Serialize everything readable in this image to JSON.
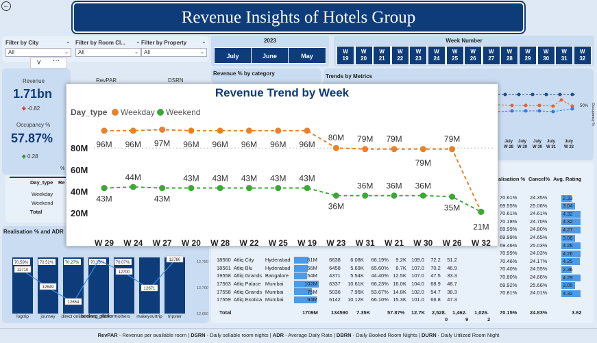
{
  "header": {
    "title": "Revenue Insights of Hotels Group"
  },
  "filters": [
    {
      "label": "Filter by City",
      "value": "All"
    },
    {
      "label": "Filter by Room Cl...",
      "value": "All"
    },
    {
      "label": "Filter by Property",
      "value": "All"
    }
  ],
  "months": {
    "year": "2023",
    "items": [
      "July",
      "June",
      "May"
    ]
  },
  "weeks": {
    "title": "Week Number",
    "prefix": "W",
    "items": [
      "19",
      "20",
      "21",
      "22",
      "23",
      "24",
      "25",
      "26",
      "27",
      "28",
      "29",
      "30",
      "31",
      "32"
    ]
  },
  "kpis": {
    "revenue_label": "Revenue",
    "revenue_value": "1.71bn",
    "revenue_delta": "-0.82",
    "occupancy_label": "Occupancy %",
    "occupancy_value": "57.87%",
    "occupancy_delta": "0.28",
    "revpar_label": "RevPAR",
    "dsrn_label": "DSRN"
  },
  "day_type_table": {
    "header_day": "Day_type",
    "header_rev": "Re",
    "rows": [
      "Weekday",
      "Weekend",
      "Total"
    ],
    "pct_mark": "%"
  },
  "sections": {
    "rev_by_category": "Revenue % by category",
    "trends_by_metrics": "Trends by Metrics",
    "realisation_adr": "Realisation % and ADR"
  },
  "trend_panel": {
    "x_labels": [
      "July W 28",
      "July W 29",
      "July W 30",
      "July W 31",
      "July W 32"
    ],
    "right_axis": "Occupancy %",
    "pct_tick": "50%"
  },
  "platform_chart": {
    "xlabel": "booking_platform",
    "categories": [
      "logtrip",
      "journey",
      "direct online",
      "direct offline",
      "others",
      "makeyourtrip",
      "tripster"
    ],
    "realisation": [
      "70.59%",
      "70.52%",
      "70.27%",
      "70.26%",
      "70.07%",
      "",
      ""
    ],
    "adr": [
      "12710",
      "12649",
      "12654",
      "",
      "12700",
      "12671",
      "12780"
    ],
    "axis_ticks": [
      "12,750",
      "12,700",
      "12,650"
    ]
  },
  "popup": {
    "title": "Revenue Trend by Week"
  },
  "chart_data": {
    "type": "line",
    "title": "Revenue Trend by Week",
    "legend_title": "Day_type",
    "categories": [
      "W 29",
      "W 24",
      "W 27",
      "W 20",
      "W 28",
      "W 22",
      "W 25",
      "W 19",
      "W 23",
      "W 31",
      "W 21",
      "W 30",
      "W 26",
      "W 32"
    ],
    "y_ticks": [
      "80M",
      "60M",
      "40M",
      "20M"
    ],
    "ylim": [
      18,
      100
    ],
    "series": [
      {
        "name": "Weekday",
        "color": "#e8822a",
        "values": [
          96,
          96,
          97,
          96,
          96,
          96,
          96,
          96,
          80,
          79,
          79,
          79,
          79,
          21
        ],
        "labels": [
          "96M",
          "96M",
          "97M",
          "96M",
          "96M",
          "96M",
          "96M",
          "96M",
          "80M",
          "79M",
          "79M",
          "79M",
          "79M",
          "21M"
        ]
      },
      {
        "name": "Weekend",
        "color": "#3aaa35",
        "values": [
          43,
          44,
          43,
          43,
          43,
          43,
          43,
          43,
          36,
          36,
          36,
          36,
          35,
          21
        ],
        "labels": [
          "43M",
          "44M",
          "43M",
          "43M",
          "43M",
          "43M",
          "43M",
          "43M",
          "36M",
          "36M",
          "36M",
          "36M",
          "35M",
          ""
        ]
      }
    ]
  },
  "property_table": {
    "rows": [
      [
        "18560",
        "Atliq City",
        "Hyderabad",
        "61M",
        "6638",
        "6.08K",
        "66.19%",
        "9.2K",
        "109.0",
        "72.2",
        "51.2"
      ],
      [
        "18561",
        "Atliq Blu",
        "Hyderabad",
        "56M",
        "6458",
        "5.69K",
        "65.60%",
        "8.7K",
        "107.0",
        "70.2",
        "46.9"
      ],
      [
        "19558",
        "Atliq Grands",
        "Bangalore",
        "54M",
        "4371",
        "5.54K",
        "44.40%",
        "12.5K",
        "107.0",
        "47.5",
        "33.3"
      ],
      [
        "17563",
        "Atliq Palace",
        "Mumbai",
        "102M",
        "6337",
        "10.61K",
        "66.23%",
        "16.0K",
        "104.0",
        "68.9",
        "48.7"
      ],
      [
        "17558",
        "Atliq Grands",
        "Mumbai",
        "75M",
        "5036",
        "7.96K",
        "53.67%",
        "14.8K",
        "102.0",
        "54.7",
        "38.3"
      ],
      [
        "17559",
        "Atliq Exotica",
        "Mumbai",
        "94M",
        "6142",
        "10.12K",
        "66.10%",
        "15.3K",
        "101.0",
        "66.8",
        "47.3"
      ]
    ],
    "bar_fracs": [
      0.6,
      0.55,
      0.53,
      1.0,
      0.74,
      0.92
    ],
    "total": [
      "Total",
      "1709M",
      "134590",
      "7.35K",
      "57.87%",
      "12.7K",
      "2,528.",
      "1,462.",
      "1,026."
    ],
    "total_sub": [
      "0",
      "9",
      "2"
    ]
  },
  "right_table": {
    "headers": [
      "alisation %",
      "Cancel%",
      "Avg. Rating"
    ],
    "rows": [
      [
        "70.61%",
        "24.35%",
        "2.33"
      ],
      [
        "69.55%",
        "25.06%",
        "3.04"
      ],
      [
        "70.61%",
        "24.61%",
        "4.32"
      ],
      [
        "70.18%",
        "24.70%",
        "4.32"
      ],
      [
        "69.99%",
        "24.80%",
        "4.27"
      ],
      [
        "69.99%",
        "24.65%",
        "3.08"
      ],
      [
        "69.46%",
        "25.03%",
        "4.28"
      ],
      [
        "70.99%",
        "24.03%",
        "4.26"
      ],
      [
        "70.46%",
        "24.17%",
        "4.25"
      ],
      [
        "70.40%",
        "24.55%",
        "2.36"
      ],
      [
        "70.80%",
        "24.66%",
        "4.29"
      ],
      [
        "69.92%",
        "25.66%",
        "3.05"
      ],
      [
        "70.81%",
        "24.01%",
        "4.32"
      ]
    ],
    "rating_fracs": [
      0.5,
      0.65,
      0.93,
      0.93,
      0.92,
      0.66,
      0.92,
      0.92,
      0.91,
      0.5,
      0.92,
      0.65,
      0.93
    ],
    "total": [
      "70.15%",
      "24.83%",
      "3.62"
    ]
  },
  "footer": {
    "items": [
      {
        "abbr": "RevPAR",
        "text": " - Revenue per available room"
      },
      {
        "abbr": "DSRN",
        "text": " - Daily sellable room nights"
      },
      {
        "abbr": "ADR",
        "text": " - Average Daily Rate"
      },
      {
        "abbr": "DBRN",
        "text": " - Daily Booked Room Nights"
      },
      {
        "abbr": "DURN",
        "text": " - Daily Utilized Room Night"
      }
    ]
  }
}
